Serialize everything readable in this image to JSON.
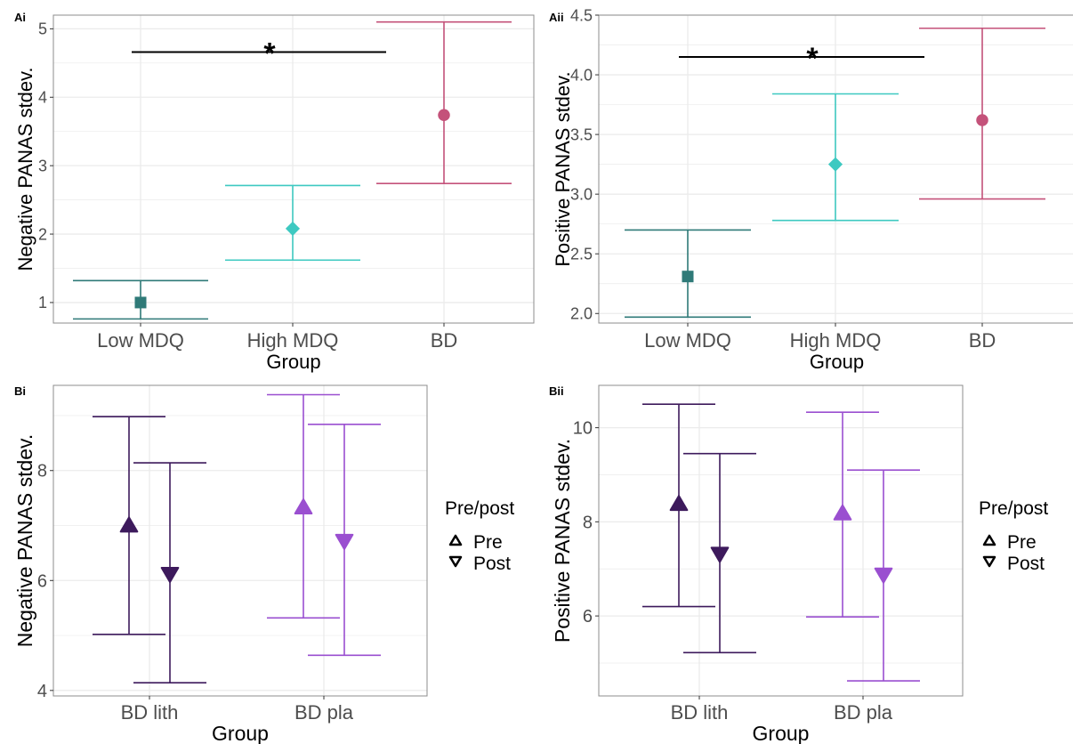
{
  "colors": {
    "low_mdq": "#2f7a78",
    "high_mdq": "#3ec9c1",
    "bd": "#c4527a",
    "bd_lith": "#3d1a5c",
    "bd_pla": "#9a4fd0",
    "grid": "#ebebeb",
    "panel_border": "#8c8c8c"
  },
  "legend": {
    "title": "Pre/post",
    "items": [
      {
        "label": "Pre",
        "shape": "triangle-up"
      },
      {
        "label": "Post",
        "shape": "triangle-down"
      }
    ]
  },
  "chart_data": [
    {
      "panel_label": "Ai",
      "type": "scatter",
      "error_bars": true,
      "xlabel": "Group",
      "ylabel": "Negative PANAS stdev.",
      "categories": [
        "Low MDQ",
        "High MDQ",
        "BD"
      ],
      "ylim": [
        0.7,
        5.2
      ],
      "yticks": [
        1,
        2,
        3,
        4,
        5
      ],
      "points": [
        {
          "group": "Low MDQ",
          "y": 1.0,
          "ymin": 0.76,
          "ymax": 1.32,
          "shape": "square",
          "color": "#2f7a78"
        },
        {
          "group": "High MDQ",
          "y": 2.08,
          "ymin": 1.62,
          "ymax": 2.71,
          "shape": "diamond",
          "color": "#3ec9c1"
        },
        {
          "group": "BD",
          "y": 3.74,
          "ymin": 2.74,
          "ymax": 5.1,
          "shape": "circle",
          "color": "#c4527a"
        }
      ],
      "significance": {
        "from": "Low MDQ",
        "to": "BD",
        "y": 4.66,
        "label": "*"
      },
      "grid": true
    },
    {
      "panel_label": "Aii",
      "type": "scatter",
      "error_bars": true,
      "xlabel": "Group",
      "ylabel": "Positive PANAS stdev.",
      "categories": [
        "Low MDQ",
        "High MDQ",
        "BD"
      ],
      "ylim": [
        1.92,
        4.5
      ],
      "yticks": [
        "2.0",
        "2.5",
        "3.0",
        "3.5",
        "4.0",
        "4.5"
      ],
      "points": [
        {
          "group": "Low MDQ",
          "y": 2.31,
          "ymin": 1.97,
          "ymax": 2.7,
          "shape": "square",
          "color": "#2f7a78"
        },
        {
          "group": "High MDQ",
          "y": 3.25,
          "ymin": 2.78,
          "ymax": 3.84,
          "shape": "diamond",
          "color": "#3ec9c1"
        },
        {
          "group": "BD",
          "y": 3.62,
          "ymin": 2.96,
          "ymax": 4.39,
          "shape": "circle",
          "color": "#c4527a"
        }
      ],
      "significance": {
        "from": "Low MDQ",
        "to": "BD",
        "y": 4.15,
        "label": "*"
      },
      "grid": true
    },
    {
      "panel_label": "Bi",
      "type": "scatter",
      "error_bars": true,
      "xlabel": "Group",
      "ylabel": "Negative PANAS stdev.",
      "categories": [
        "BD lith",
        "BD pla"
      ],
      "ylim": [
        3.9,
        9.55
      ],
      "yticks": [
        4,
        6,
        8
      ],
      "points": [
        {
          "group": "BD lith",
          "time": "Pre",
          "y": 7.0,
          "ymin": 5.02,
          "ymax": 8.98,
          "shape": "triangle-up",
          "color": "#3d1a5c"
        },
        {
          "group": "BD lith",
          "time": "Post",
          "y": 6.12,
          "ymin": 4.14,
          "ymax": 8.14,
          "shape": "triangle-down",
          "color": "#3d1a5c"
        },
        {
          "group": "BD pla",
          "time": "Pre",
          "y": 7.33,
          "ymin": 5.32,
          "ymax": 9.38,
          "shape": "triangle-up",
          "color": "#9a4fd0"
        },
        {
          "group": "BD pla",
          "time": "Post",
          "y": 6.72,
          "ymin": 4.64,
          "ymax": 8.84,
          "shape": "triangle-down",
          "color": "#9a4fd0"
        }
      ],
      "grid": true
    },
    {
      "panel_label": "Bii",
      "type": "scatter",
      "error_bars": true,
      "xlabel": "Group",
      "ylabel": "Positive PANAS stdev.",
      "categories": [
        "BD lith",
        "BD pla"
      ],
      "ylim": [
        4.3,
        10.9
      ],
      "yticks": [
        6,
        8,
        10
      ],
      "points": [
        {
          "group": "BD lith",
          "time": "Pre",
          "y": 8.38,
          "ymin": 6.2,
          "ymax": 10.5,
          "shape": "triangle-up",
          "color": "#3d1a5c"
        },
        {
          "group": "BD lith",
          "time": "Post",
          "y": 7.32,
          "ymin": 5.22,
          "ymax": 9.45,
          "shape": "triangle-down",
          "color": "#3d1a5c"
        },
        {
          "group": "BD pla",
          "time": "Pre",
          "y": 8.18,
          "ymin": 5.98,
          "ymax": 10.33,
          "shape": "triangle-up",
          "color": "#9a4fd0"
        },
        {
          "group": "BD pla",
          "time": "Post",
          "y": 6.88,
          "ymin": 4.62,
          "ymax": 9.1,
          "shape": "triangle-down",
          "color": "#9a4fd0"
        }
      ],
      "grid": true
    }
  ]
}
